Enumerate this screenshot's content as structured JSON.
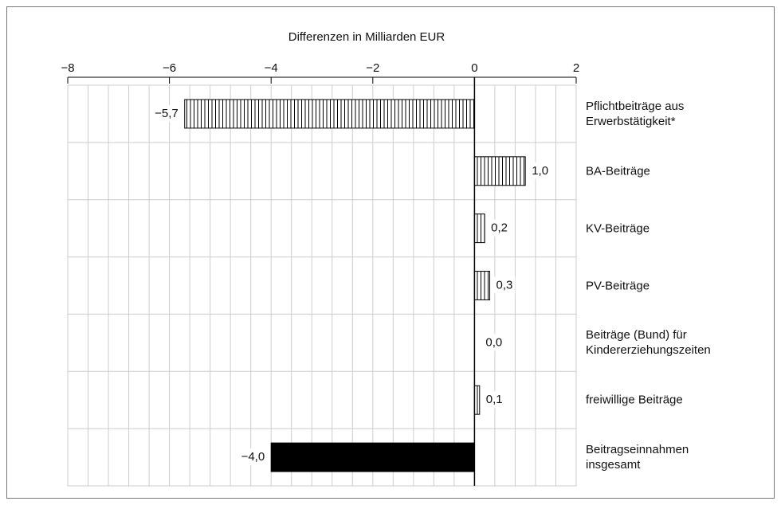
{
  "chart_data": {
    "type": "bar",
    "orientation": "horizontal",
    "title": "Differenzen in Milliarden EUR",
    "categories": [
      "Pflichtbeiträge aus\nErwerbstätigkeit*",
      "BA-Beiträge",
      "KV-Beiträge",
      "PV-Beiträge",
      "Beiträge (Bund) für\nKindererziehungszeiten",
      "freiwillige Beiträge",
      "Beitragseinnahmen\ninsgesamt"
    ],
    "values": [
      -5.7,
      1.0,
      0.2,
      0.3,
      0.0,
      0.1,
      -4.0
    ],
    "value_labels": [
      "−5,7",
      "1,0",
      "0,2",
      "0,3",
      "0,0",
      "0,1",
      "−4,0"
    ],
    "fills": [
      "hatched",
      "hatched",
      "hatched",
      "hatched",
      "hatched",
      "hatched",
      "solid"
    ],
    "color": "#000000",
    "xlim": [
      -8,
      2
    ],
    "xticks": [
      {
        "value": -8,
        "label": "−8"
      },
      {
        "value": -6,
        "label": "−6"
      },
      {
        "value": -4,
        "label": "−4"
      },
      {
        "value": -2,
        "label": "−2"
      },
      0,
      2
    ],
    "grid": true
  }
}
